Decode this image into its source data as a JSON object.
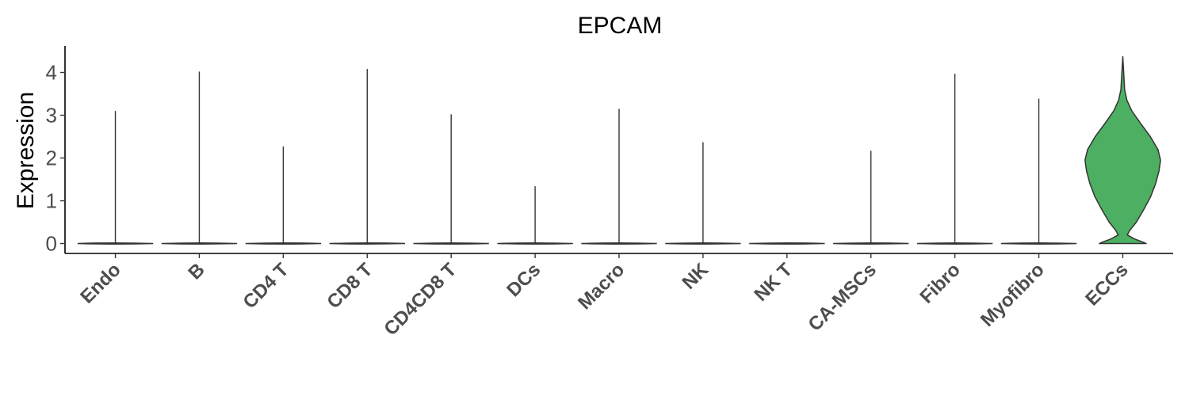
{
  "chart_data": {
    "type": "violin",
    "title": "EPCAM",
    "xlabel": "",
    "ylabel": "Expression",
    "ylim": [
      -0.2,
      4.55
    ],
    "yticks": [
      0,
      1,
      2,
      3,
      4
    ],
    "grid": false,
    "legend": "none",
    "categories": [
      "Endo",
      "B",
      "CD4 T",
      "CD8 T",
      "CD4CD8 T",
      "DCs",
      "Macro",
      "NK",
      "NK T",
      "CA-MSCs",
      "Fibro",
      "Myofibro",
      "ECCs"
    ],
    "max_values": [
      3.1,
      4.02,
      2.27,
      4.08,
      3.02,
      1.34,
      3.15,
      2.37,
      0.0,
      2.17,
      3.97,
      3.39,
      4.37
    ],
    "colors": {
      "default_fill": "#ffffff",
      "ECCs": "#4daf62",
      "outline": "#333333"
    },
    "ECCs_density": [
      {
        "y": 0.0,
        "w": 0.62
      },
      {
        "y": 0.03,
        "w": 0.55
      },
      {
        "y": 0.1,
        "w": 0.33
      },
      {
        "y": 0.2,
        "w": 0.12
      },
      {
        "y": 0.3,
        "w": 0.18
      },
      {
        "y": 0.5,
        "w": 0.36
      },
      {
        "y": 0.8,
        "w": 0.56
      },
      {
        "y": 1.1,
        "w": 0.74
      },
      {
        "y": 1.4,
        "w": 0.87
      },
      {
        "y": 1.7,
        "w": 0.96
      },
      {
        "y": 1.95,
        "w": 1.0
      },
      {
        "y": 2.2,
        "w": 0.93
      },
      {
        "y": 2.5,
        "w": 0.73
      },
      {
        "y": 2.8,
        "w": 0.48
      },
      {
        "y": 3.1,
        "w": 0.24
      },
      {
        "y": 3.35,
        "w": 0.11
      },
      {
        "y": 3.6,
        "w": 0.05
      },
      {
        "y": 3.9,
        "w": 0.03
      },
      {
        "y": 4.37,
        "w": 0.0
      }
    ]
  }
}
